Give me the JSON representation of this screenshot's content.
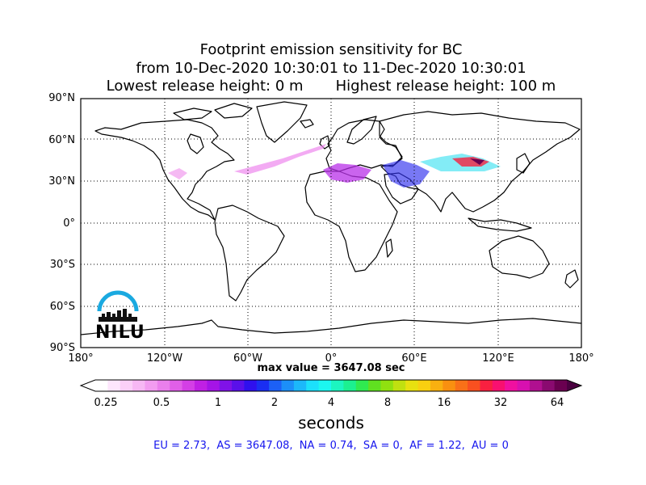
{
  "title": {
    "line1": "Footprint emission sensitivity for BC",
    "line2": "from 10-Dec-2020 10:30:01 to 11-Dec-2020 10:30:01",
    "line3_left": "Lowest release height: 0 m",
    "line3_right": "Highest release height: 100 m"
  },
  "axes": {
    "lat_ticks": [
      "90°N",
      "60°N",
      "30°N",
      "0°",
      "30°S",
      "60°S",
      "90°S"
    ],
    "lon_ticks": [
      "180°",
      "120°W",
      "60°W",
      "0°",
      "60°E",
      "120°E",
      "180°"
    ]
  },
  "max_value_text": "max value = 3647.08 sec",
  "colorbar": {
    "ticks": [
      "0.25",
      "0.5",
      "1",
      "2",
      "4",
      "8",
      "16",
      "32",
      "64"
    ],
    "unit_label": "seconds",
    "colors": [
      "#ffffff",
      "#fde6fc",
      "#fbd0f8",
      "#f7b8f4",
      "#f29cf0",
      "#ea7fec",
      "#e15fe8",
      "#d43fe6",
      "#c020e4",
      "#a514e6",
      "#8012e8",
      "#5a10ea",
      "#2f10ee",
      "#1a2ef2",
      "#1c60f6",
      "#1c8ff8",
      "#1cb8fa",
      "#1ce0fb",
      "#1cf7f0",
      "#1cf5c0",
      "#1cf090",
      "#30ea50",
      "#60e020",
      "#90e010",
      "#c0e010",
      "#e8e010",
      "#f8d010",
      "#f8b010",
      "#f89010",
      "#f87018",
      "#f85020",
      "#f82040",
      "#f81070",
      "#f010a0",
      "#d810b0",
      "#b01090",
      "#8a0a70",
      "#6a0050"
    ]
  },
  "summary": "EU = 2.73,  AS = 3647.08,  NA = 0.74,  SA = 0,  AF = 1.22,  AU = 0",
  "logo": {
    "text": "NILU",
    "color": "#1aa9e0"
  }
}
